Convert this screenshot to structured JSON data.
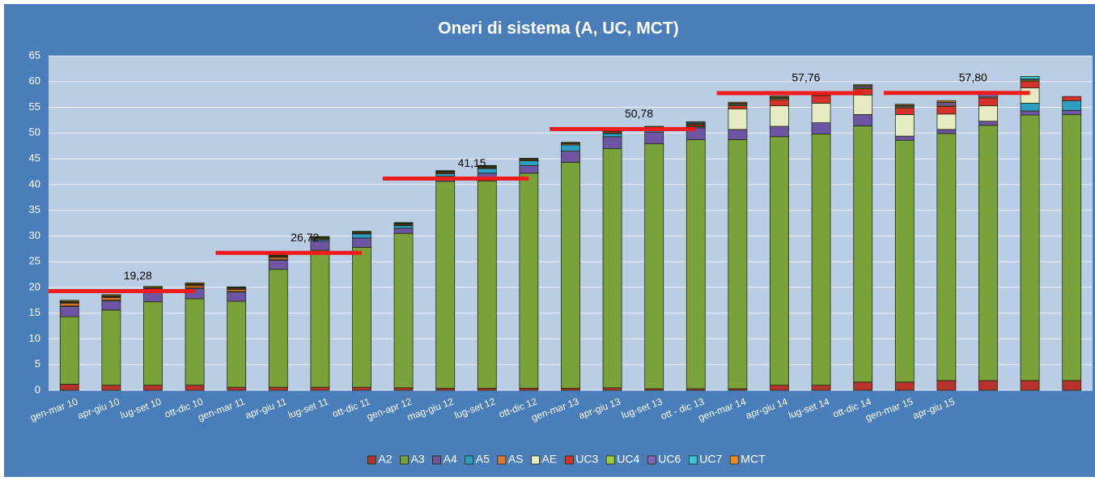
{
  "chart_data": {
    "type": "stacked_bar",
    "title": "Oneri di sistema (A, UC, MCT)",
    "categories": [
      "gen-mar 10",
      "apr-giu 10",
      "lug-set 10",
      "ott-dic 10",
      "gen-mar 11",
      "apr-giu 11",
      "lug-set 11",
      "ott-dic 11",
      "gen-apr 12",
      "mag-giu 12",
      "lug-set 12",
      "ott-dic 12",
      "gen-mar 13",
      "apr-giu 13",
      "lug-set 13",
      "ott - dic 13",
      "gen-mar 14",
      "apr-giu 14",
      "lug-set 14",
      "ott-dic 14",
      "gen-mar 15",
      "apr-giu 15",
      null,
      null,
      null
    ],
    "series": [
      {
        "name": "A2",
        "color": "#b8322c",
        "values": [
          1.2,
          1.0,
          1.0,
          1.0,
          0.6,
          0.6,
          0.6,
          0.6,
          0.5,
          0.4,
          0.4,
          0.4,
          0.4,
          0.5,
          0.3,
          0.3,
          0.3,
          1.0,
          1.0,
          1.6,
          1.6,
          1.9,
          1.9,
          1.9,
          1.9
        ]
      },
      {
        "name": "A3",
        "color": "#7aa23a",
        "values": [
          13.1,
          14.6,
          16.2,
          16.8,
          16.7,
          22.9,
          26.6,
          27.2,
          30.0,
          40.2,
          40.3,
          41.8,
          43.9,
          46.5,
          47.6,
          48.4,
          48.4,
          48.3,
          48.8,
          49.8,
          47.0,
          48.0,
          49.6,
          51.6,
          51.7
        ]
      },
      {
        "name": "A4",
        "color": "#6d55a3",
        "values": [
          2.0,
          1.8,
          2.0,
          2.0,
          1.8,
          1.8,
          1.8,
          1.8,
          1.0,
          1.0,
          1.5,
          1.5,
          2.2,
          2.3,
          2.3,
          2.3,
          2.0,
          2.0,
          2.2,
          2.2,
          0.8,
          0.8,
          0.8,
          0.8,
          0.8
        ]
      },
      {
        "name": "A5",
        "color": "#2e9fc4",
        "values": [
          0.1,
          0.1,
          0.1,
          0.1,
          0.1,
          0.1,
          0.3,
          0.8,
          0.5,
          0.5,
          0.9,
          0.9,
          1.2,
          0.6,
          0.6,
          0.2,
          0,
          0,
          0,
          0,
          0,
          0,
          0,
          1.5,
          1.9
        ]
      },
      {
        "name": "AS",
        "color": "#d9782b",
        "values": [
          0.5,
          0.5,
          0.3,
          0.4,
          0.4,
          0.4,
          0.1,
          0.1,
          0.1,
          0.1,
          0.1,
          0.1,
          0.2,
          0.1,
          0.1,
          0.1,
          0,
          0,
          0,
          0,
          0,
          0,
          0,
          0,
          0
        ]
      },
      {
        "name": "AE",
        "color": "#e6ebc2",
        "values": [
          0,
          0,
          0,
          0,
          0,
          0,
          0,
          0,
          0,
          0,
          0,
          0,
          0,
          0,
          0,
          0,
          4.0,
          4.0,
          3.8,
          3.8,
          4.2,
          3.0,
          3.0,
          3.0,
          0
        ]
      },
      {
        "name": "UC3",
        "color": "#d8312b",
        "values": [
          0.2,
          0.2,
          0.2,
          0.2,
          0.2,
          0.2,
          0.2,
          0.2,
          0.2,
          0.2,
          0.2,
          0.2,
          0.2,
          0.3,
          0.3,
          0.3,
          0.6,
          1.2,
          1.5,
          1.2,
          1.3,
          1.5,
          1.5,
          1.3,
          0.8
        ]
      },
      {
        "name": "UC4",
        "color": "#a3cc3a",
        "values": [
          0.1,
          0.1,
          0.1,
          0.1,
          0.1,
          0.1,
          0.1,
          0.1,
          0.1,
          0.1,
          0.1,
          0.1,
          0.1,
          0.1,
          0.1,
          0.1,
          0.2,
          0.2,
          0.2,
          0.2,
          0.2,
          0.2,
          0.2,
          0.2,
          0
        ]
      },
      {
        "name": "UC6",
        "color": "#8462b8",
        "values": [
          0.1,
          0.1,
          0.1,
          0.1,
          0.1,
          0.1,
          0.1,
          0.1,
          0.1,
          0.1,
          0.1,
          0.1,
          0,
          0,
          0,
          0.2,
          0.2,
          0.2,
          0.2,
          0.3,
          0.2,
          0.5,
          0.5,
          0.2,
          0
        ]
      },
      {
        "name": "UC7",
        "color": "#3ec3d4",
        "values": [
          0,
          0,
          0,
          0,
          0,
          0,
          0.1,
          0,
          0.1,
          0.1,
          0.1,
          0,
          0,
          0,
          0,
          0.2,
          0.1,
          0.1,
          0.1,
          0.1,
          0.1,
          0.1,
          0.1,
          0.5,
          0
        ]
      },
      {
        "name": "MCT",
        "color": "#ef8a26",
        "values": [
          0.2,
          0.2,
          0.2,
          0.2,
          0.1,
          0.1,
          0,
          0,
          0,
          0,
          0,
          0,
          0,
          0,
          0,
          0.1,
          0.2,
          0.2,
          0.2,
          0.2,
          0.2,
          0.3,
          0.3,
          0,
          0
        ]
      }
    ],
    "annotations": [
      {
        "text": "19,28",
        "value": 19.28,
        "from": 0,
        "to": 3
      },
      {
        "text": "26,72",
        "value": 26.72,
        "from": 4,
        "to": 7
      },
      {
        "text": "41,15",
        "value": 41.15,
        "from": 8,
        "to": 11
      },
      {
        "text": "50,78",
        "value": 50.78,
        "from": 12,
        "to": 15
      },
      {
        "text": "57,76",
        "value": 57.76,
        "from": 16,
        "to": 19
      },
      {
        "text": "57,80",
        "value": 57.8,
        "from": 20,
        "to": 23
      }
    ],
    "annotation_color": "#ee1c1c",
    "ylim": [
      0,
      65
    ],
    "yticks": [
      0,
      5,
      10,
      15,
      20,
      25,
      30,
      35,
      40,
      45,
      50,
      55,
      60,
      65
    ],
    "grid": true,
    "legend": "bottom"
  }
}
